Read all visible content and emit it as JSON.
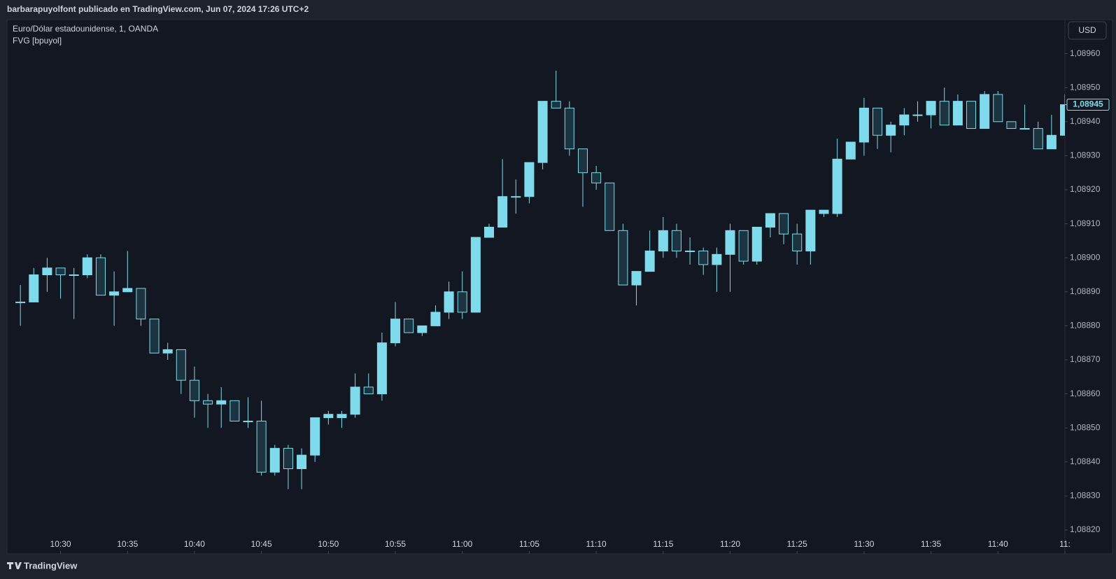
{
  "header": {
    "text": "barbarapuyolfont publicado en TradingView.com, Jun 07, 2024 17:26 UTC+2"
  },
  "footer": {
    "brand": "TradingView"
  },
  "chart_data": {
    "type": "candlestick",
    "title": "Euro/Dólar estadounidense, 1, OANDA",
    "subtitle": "FVG [bpuyol]",
    "currency": "USD",
    "up_color": "#7fdbeb",
    "down_color": "#1c3440",
    "last_price": {
      "value": 1.08945,
      "label": "1,08945"
    },
    "xlim": [
      "10:26",
      "11:45"
    ],
    "xticks": [
      "10:30",
      "10:35",
      "10:40",
      "10:45",
      "10:50",
      "10:55",
      "11:00",
      "11:05",
      "11:10",
      "11:15",
      "11:20",
      "11:25",
      "11:30",
      "11:35",
      "11:40",
      {
        "value": "11:45",
        "label": "11:"
      }
    ],
    "ylim": [
      1.08813,
      1.0897
    ],
    "yticks": [
      {
        "value": 1.0882,
        "label": "1,08820"
      },
      {
        "value": 1.0883,
        "label": "1,08830"
      },
      {
        "value": 1.0884,
        "label": "1,08840"
      },
      {
        "value": 1.0885,
        "label": "1,08850"
      },
      {
        "value": 1.0886,
        "label": "1,08860"
      },
      {
        "value": 1.0887,
        "label": "1,08870"
      },
      {
        "value": 1.0888,
        "label": "1,08880"
      },
      {
        "value": 1.0889,
        "label": "1,08890"
      },
      {
        "value": 1.089,
        "label": "1,08900"
      },
      {
        "value": 1.0891,
        "label": "1,08910"
      },
      {
        "value": 1.0892,
        "label": "1,08920"
      },
      {
        "value": 1.0893,
        "label": "1,08930"
      },
      {
        "value": 1.0894,
        "label": "1,08940"
      },
      {
        "value": 1.0895,
        "label": "1,08950"
      },
      {
        "value": 1.0896,
        "label": "1,08960"
      }
    ],
    "candles": [
      {
        "x": "10:27",
        "open": 1.08887,
        "high": 1.08892,
        "low": 1.0888,
        "close": 1.08887
      },
      {
        "x": "10:28",
        "open": 1.08887,
        "high": 1.08897,
        "low": 1.08887,
        "close": 1.08895
      },
      {
        "x": "10:29",
        "open": 1.08895,
        "high": 1.089,
        "low": 1.0889,
        "close": 1.08897
      },
      {
        "x": "10:30",
        "open": 1.08897,
        "high": 1.08897,
        "low": 1.08888,
        "close": 1.08895
      },
      {
        "x": "10:31",
        "open": 1.08895,
        "high": 1.08897,
        "low": 1.08882,
        "close": 1.08895
      },
      {
        "x": "10:32",
        "open": 1.08895,
        "high": 1.08901,
        "low": 1.08894,
        "close": 1.089
      },
      {
        "x": "10:33",
        "open": 1.089,
        "high": 1.08901,
        "low": 1.08889,
        "close": 1.08889
      },
      {
        "x": "10:34",
        "open": 1.08889,
        "high": 1.08896,
        "low": 1.0888,
        "close": 1.0889
      },
      {
        "x": "10:35",
        "open": 1.0889,
        "high": 1.08902,
        "low": 1.0889,
        "close": 1.08891
      },
      {
        "x": "10:36",
        "open": 1.08891,
        "high": 1.08891,
        "low": 1.0888,
        "close": 1.08882
      },
      {
        "x": "10:37",
        "open": 1.08882,
        "high": 1.08882,
        "low": 1.08872,
        "close": 1.08872
      },
      {
        "x": "10:38",
        "open": 1.08872,
        "high": 1.08875,
        "low": 1.0887,
        "close": 1.08873
      },
      {
        "x": "10:39",
        "open": 1.08873,
        "high": 1.08873,
        "low": 1.0886,
        "close": 1.08864
      },
      {
        "x": "10:40",
        "open": 1.08864,
        "high": 1.08868,
        "low": 1.08853,
        "close": 1.08858
      },
      {
        "x": "10:41",
        "open": 1.08858,
        "high": 1.0886,
        "low": 1.0885,
        "close": 1.08857
      },
      {
        "x": "10:42",
        "open": 1.08857,
        "high": 1.08862,
        "low": 1.0885,
        "close": 1.08858
      },
      {
        "x": "10:43",
        "open": 1.08858,
        "high": 1.08858,
        "low": 1.08852,
        "close": 1.08852
      },
      {
        "x": "10:44",
        "open": 1.08852,
        "high": 1.08859,
        "low": 1.0885,
        "close": 1.08852
      },
      {
        "x": "10:45",
        "open": 1.08852,
        "high": 1.08858,
        "low": 1.08836,
        "close": 1.08837
      },
      {
        "x": "10:46",
        "open": 1.08837,
        "high": 1.08845,
        "low": 1.08836,
        "close": 1.08844
      },
      {
        "x": "10:47",
        "open": 1.08844,
        "high": 1.08845,
        "low": 1.08832,
        "close": 1.08838
      },
      {
        "x": "10:48",
        "open": 1.08838,
        "high": 1.08844,
        "low": 1.08832,
        "close": 1.08842
      },
      {
        "x": "10:49",
        "open": 1.08842,
        "high": 1.08853,
        "low": 1.0884,
        "close": 1.08853
      },
      {
        "x": "10:50",
        "open": 1.08853,
        "high": 1.08855,
        "low": 1.08851,
        "close": 1.08854
      },
      {
        "x": "10:51",
        "open": 1.08853,
        "high": 1.08855,
        "low": 1.0885,
        "close": 1.08854
      },
      {
        "x": "10:52",
        "open": 1.08854,
        "high": 1.08866,
        "low": 1.08853,
        "close": 1.08862
      },
      {
        "x": "10:53",
        "open": 1.08862,
        "high": 1.08866,
        "low": 1.0886,
        "close": 1.0886
      },
      {
        "x": "10:54",
        "open": 1.0886,
        "high": 1.08878,
        "low": 1.08858,
        "close": 1.08875
      },
      {
        "x": "10:55",
        "open": 1.08875,
        "high": 1.08887,
        "low": 1.08874,
        "close": 1.08882
      },
      {
        "x": "10:56",
        "open": 1.08882,
        "high": 1.08882,
        "low": 1.08878,
        "close": 1.08878
      },
      {
        "x": "10:57",
        "open": 1.08878,
        "high": 1.0888,
        "low": 1.08877,
        "close": 1.0888
      },
      {
        "x": "10:58",
        "open": 1.0888,
        "high": 1.08886,
        "low": 1.0888,
        "close": 1.08884
      },
      {
        "x": "10:59",
        "open": 1.08884,
        "high": 1.08893,
        "low": 1.08882,
        "close": 1.0889
      },
      {
        "x": "11:00",
        "open": 1.0889,
        "high": 1.08896,
        "low": 1.08882,
        "close": 1.08884
      },
      {
        "x": "11:01",
        "open": 1.08884,
        "high": 1.08906,
        "low": 1.08884,
        "close": 1.08906
      },
      {
        "x": "11:02",
        "open": 1.08906,
        "high": 1.0891,
        "low": 1.08906,
        "close": 1.08909
      },
      {
        "x": "11:03",
        "open": 1.08909,
        "high": 1.08929,
        "low": 1.08909,
        "close": 1.08918
      },
      {
        "x": "11:04",
        "open": 1.08918,
        "high": 1.08923,
        "low": 1.08913,
        "close": 1.08918
      },
      {
        "x": "11:05",
        "open": 1.08918,
        "high": 1.08928,
        "low": 1.08916,
        "close": 1.08928
      },
      {
        "x": "11:06",
        "open": 1.08928,
        "high": 1.08946,
        "low": 1.08926,
        "close": 1.08946
      },
      {
        "x": "11:07",
        "open": 1.08946,
        "high": 1.08955,
        "low": 1.08944,
        "close": 1.08944
      },
      {
        "x": "11:08",
        "open": 1.08944,
        "high": 1.08946,
        "low": 1.0893,
        "close": 1.08932
      },
      {
        "x": "11:09",
        "open": 1.08932,
        "high": 1.08932,
        "low": 1.08915,
        "close": 1.08925
      },
      {
        "x": "11:10",
        "open": 1.08925,
        "high": 1.08927,
        "low": 1.0892,
        "close": 1.08922
      },
      {
        "x": "11:11",
        "open": 1.08922,
        "high": 1.08922,
        "low": 1.08908,
        "close": 1.08908
      },
      {
        "x": "11:12",
        "open": 1.08908,
        "high": 1.0891,
        "low": 1.08892,
        "close": 1.08892
      },
      {
        "x": "11:13",
        "open": 1.08892,
        "high": 1.08896,
        "low": 1.08886,
        "close": 1.08896
      },
      {
        "x": "11:14",
        "open": 1.08896,
        "high": 1.08908,
        "low": 1.08896,
        "close": 1.08902
      },
      {
        "x": "11:15",
        "open": 1.08902,
        "high": 1.08912,
        "low": 1.089,
        "close": 1.08908
      },
      {
        "x": "11:16",
        "open": 1.08908,
        "high": 1.0891,
        "low": 1.089,
        "close": 1.08902
      },
      {
        "x": "11:17",
        "open": 1.08902,
        "high": 1.08906,
        "low": 1.08898,
        "close": 1.08902
      },
      {
        "x": "11:18",
        "open": 1.08902,
        "high": 1.08903,
        "low": 1.08895,
        "close": 1.08898
      },
      {
        "x": "11:19",
        "open": 1.08898,
        "high": 1.08903,
        "low": 1.0889,
        "close": 1.08901
      },
      {
        "x": "11:20",
        "open": 1.08901,
        "high": 1.0891,
        "low": 1.0889,
        "close": 1.08908
      },
      {
        "x": "11:21",
        "open": 1.08908,
        "high": 1.08908,
        "low": 1.08898,
        "close": 1.08899
      },
      {
        "x": "11:22",
        "open": 1.08899,
        "high": 1.08909,
        "low": 1.08898,
        "close": 1.08909
      },
      {
        "x": "11:23",
        "open": 1.08909,
        "high": 1.08913,
        "low": 1.08906,
        "close": 1.08913
      },
      {
        "x": "11:24",
        "open": 1.08913,
        "high": 1.08913,
        "low": 1.08904,
        "close": 1.08907
      },
      {
        "x": "11:25",
        "open": 1.08907,
        "high": 1.0891,
        "low": 1.08898,
        "close": 1.08902
      },
      {
        "x": "11:26",
        "open": 1.08902,
        "high": 1.08914,
        "low": 1.08898,
        "close": 1.08914
      },
      {
        "x": "11:27",
        "open": 1.08913,
        "high": 1.08914,
        "low": 1.08912,
        "close": 1.08914
      },
      {
        "x": "11:28",
        "open": 1.08913,
        "high": 1.08935,
        "low": 1.08912,
        "close": 1.08929
      },
      {
        "x": "11:29",
        "open": 1.08929,
        "high": 1.08934,
        "low": 1.08929,
        "close": 1.08934
      },
      {
        "x": "11:30",
        "open": 1.08934,
        "high": 1.08947,
        "low": 1.0893,
        "close": 1.08944
      },
      {
        "x": "11:31",
        "open": 1.08944,
        "high": 1.08944,
        "low": 1.08932,
        "close": 1.08936
      },
      {
        "x": "11:32",
        "open": 1.08936,
        "high": 1.0894,
        "low": 1.08931,
        "close": 1.08939
      },
      {
        "x": "11:33",
        "open": 1.08939,
        "high": 1.08944,
        "low": 1.08936,
        "close": 1.08942
      },
      {
        "x": "11:34",
        "open": 1.08942,
        "high": 1.08946,
        "low": 1.0894,
        "close": 1.08942
      },
      {
        "x": "11:35",
        "open": 1.08942,
        "high": 1.08946,
        "low": 1.08938,
        "close": 1.08946
      },
      {
        "x": "11:36",
        "open": 1.08946,
        "high": 1.0895,
        "low": 1.08939,
        "close": 1.08939
      },
      {
        "x": "11:37",
        "open": 1.08939,
        "high": 1.08948,
        "low": 1.08939,
        "close": 1.08946
      },
      {
        "x": "11:38",
        "open": 1.08946,
        "high": 1.08946,
        "low": 1.08938,
        "close": 1.08938
      },
      {
        "x": "11:39",
        "open": 1.08938,
        "high": 1.08949,
        "low": 1.08938,
        "close": 1.08948
      },
      {
        "x": "11:40",
        "open": 1.08948,
        "high": 1.08949,
        "low": 1.0894,
        "close": 1.0894
      },
      {
        "x": "11:41",
        "open": 1.0894,
        "high": 1.0894,
        "low": 1.08938,
        "close": 1.08938
      },
      {
        "x": "11:42",
        "open": 1.08938,
        "high": 1.08945,
        "low": 1.08938,
        "close": 1.08938
      },
      {
        "x": "11:43",
        "open": 1.08938,
        "high": 1.0894,
        "low": 1.08932,
        "close": 1.08932
      },
      {
        "x": "11:44",
        "open": 1.08932,
        "high": 1.08942,
        "low": 1.08932,
        "close": 1.08936
      },
      {
        "x": "11:45",
        "open": 1.08936,
        "high": 1.08948,
        "low": 1.08936,
        "close": 1.08945
      }
    ]
  }
}
